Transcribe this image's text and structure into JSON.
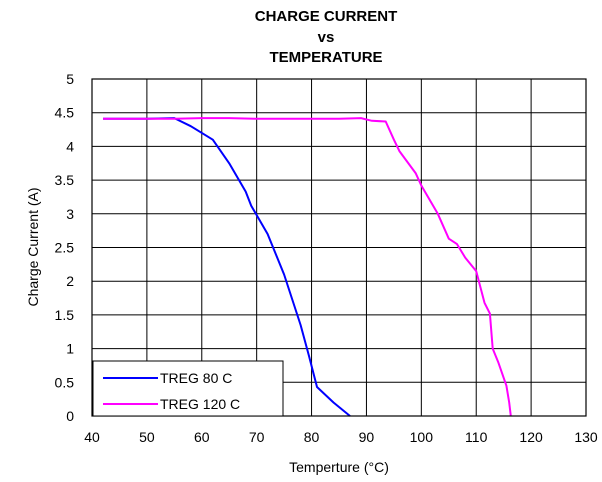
{
  "chart_data": {
    "type": "line",
    "title_lines": [
      "CHARGE CURRENT",
      "vs",
      "TEMPERATURE"
    ],
    "xlabel": "Temperture (°C)",
    "ylabel": "Charge Current (A)",
    "xlim": [
      40,
      130
    ],
    "ylim": [
      0,
      5
    ],
    "x_ticks": [
      "40",
      "50",
      "60",
      "70",
      "80",
      "90",
      "100",
      "110",
      "120",
      "130"
    ],
    "y_ticks": [
      "0",
      "0.5",
      "1",
      "1.5",
      "2",
      "2.5",
      "3",
      "3.5",
      "4",
      "4.5",
      "5"
    ],
    "grid": true,
    "legend_position": "bottom-left",
    "series": [
      {
        "name": "TREG 80 C",
        "color": "#0000ff",
        "points": [
          [
            42,
            4.41
          ],
          [
            50,
            4.41
          ],
          [
            55,
            4.42
          ],
          [
            58,
            4.3
          ],
          [
            62,
            4.1
          ],
          [
            65,
            3.75
          ],
          [
            68,
            3.33
          ],
          [
            69,
            3.12
          ],
          [
            72,
            2.7
          ],
          [
            75,
            2.1
          ],
          [
            78,
            1.35
          ],
          [
            79.5,
            0.9
          ],
          [
            81,
            0.43
          ],
          [
            84,
            0.2
          ],
          [
            87,
            0.0
          ]
        ]
      },
      {
        "name": "TREG 120 C",
        "color": "#ff00ff",
        "points": [
          [
            42,
            4.41
          ],
          [
            55,
            4.41
          ],
          [
            60,
            4.42
          ],
          [
            65,
            4.42
          ],
          [
            70,
            4.41
          ],
          [
            75,
            4.41
          ],
          [
            80,
            4.41
          ],
          [
            85,
            4.41
          ],
          [
            89,
            4.42
          ],
          [
            91,
            4.38
          ],
          [
            93.5,
            4.37
          ],
          [
            95,
            4.1
          ],
          [
            96,
            3.93
          ],
          [
            99,
            3.6
          ],
          [
            100,
            3.42
          ],
          [
            103,
            3.0
          ],
          [
            105,
            2.63
          ],
          [
            106.5,
            2.55
          ],
          [
            108,
            2.35
          ],
          [
            110,
            2.15
          ],
          [
            111.5,
            1.68
          ],
          [
            112.5,
            1.52
          ],
          [
            113,
            1.0
          ],
          [
            114,
            0.8
          ],
          [
            115.5,
            0.45
          ],
          [
            116,
            0.2
          ],
          [
            116.3,
            0.0
          ]
        ]
      }
    ]
  }
}
